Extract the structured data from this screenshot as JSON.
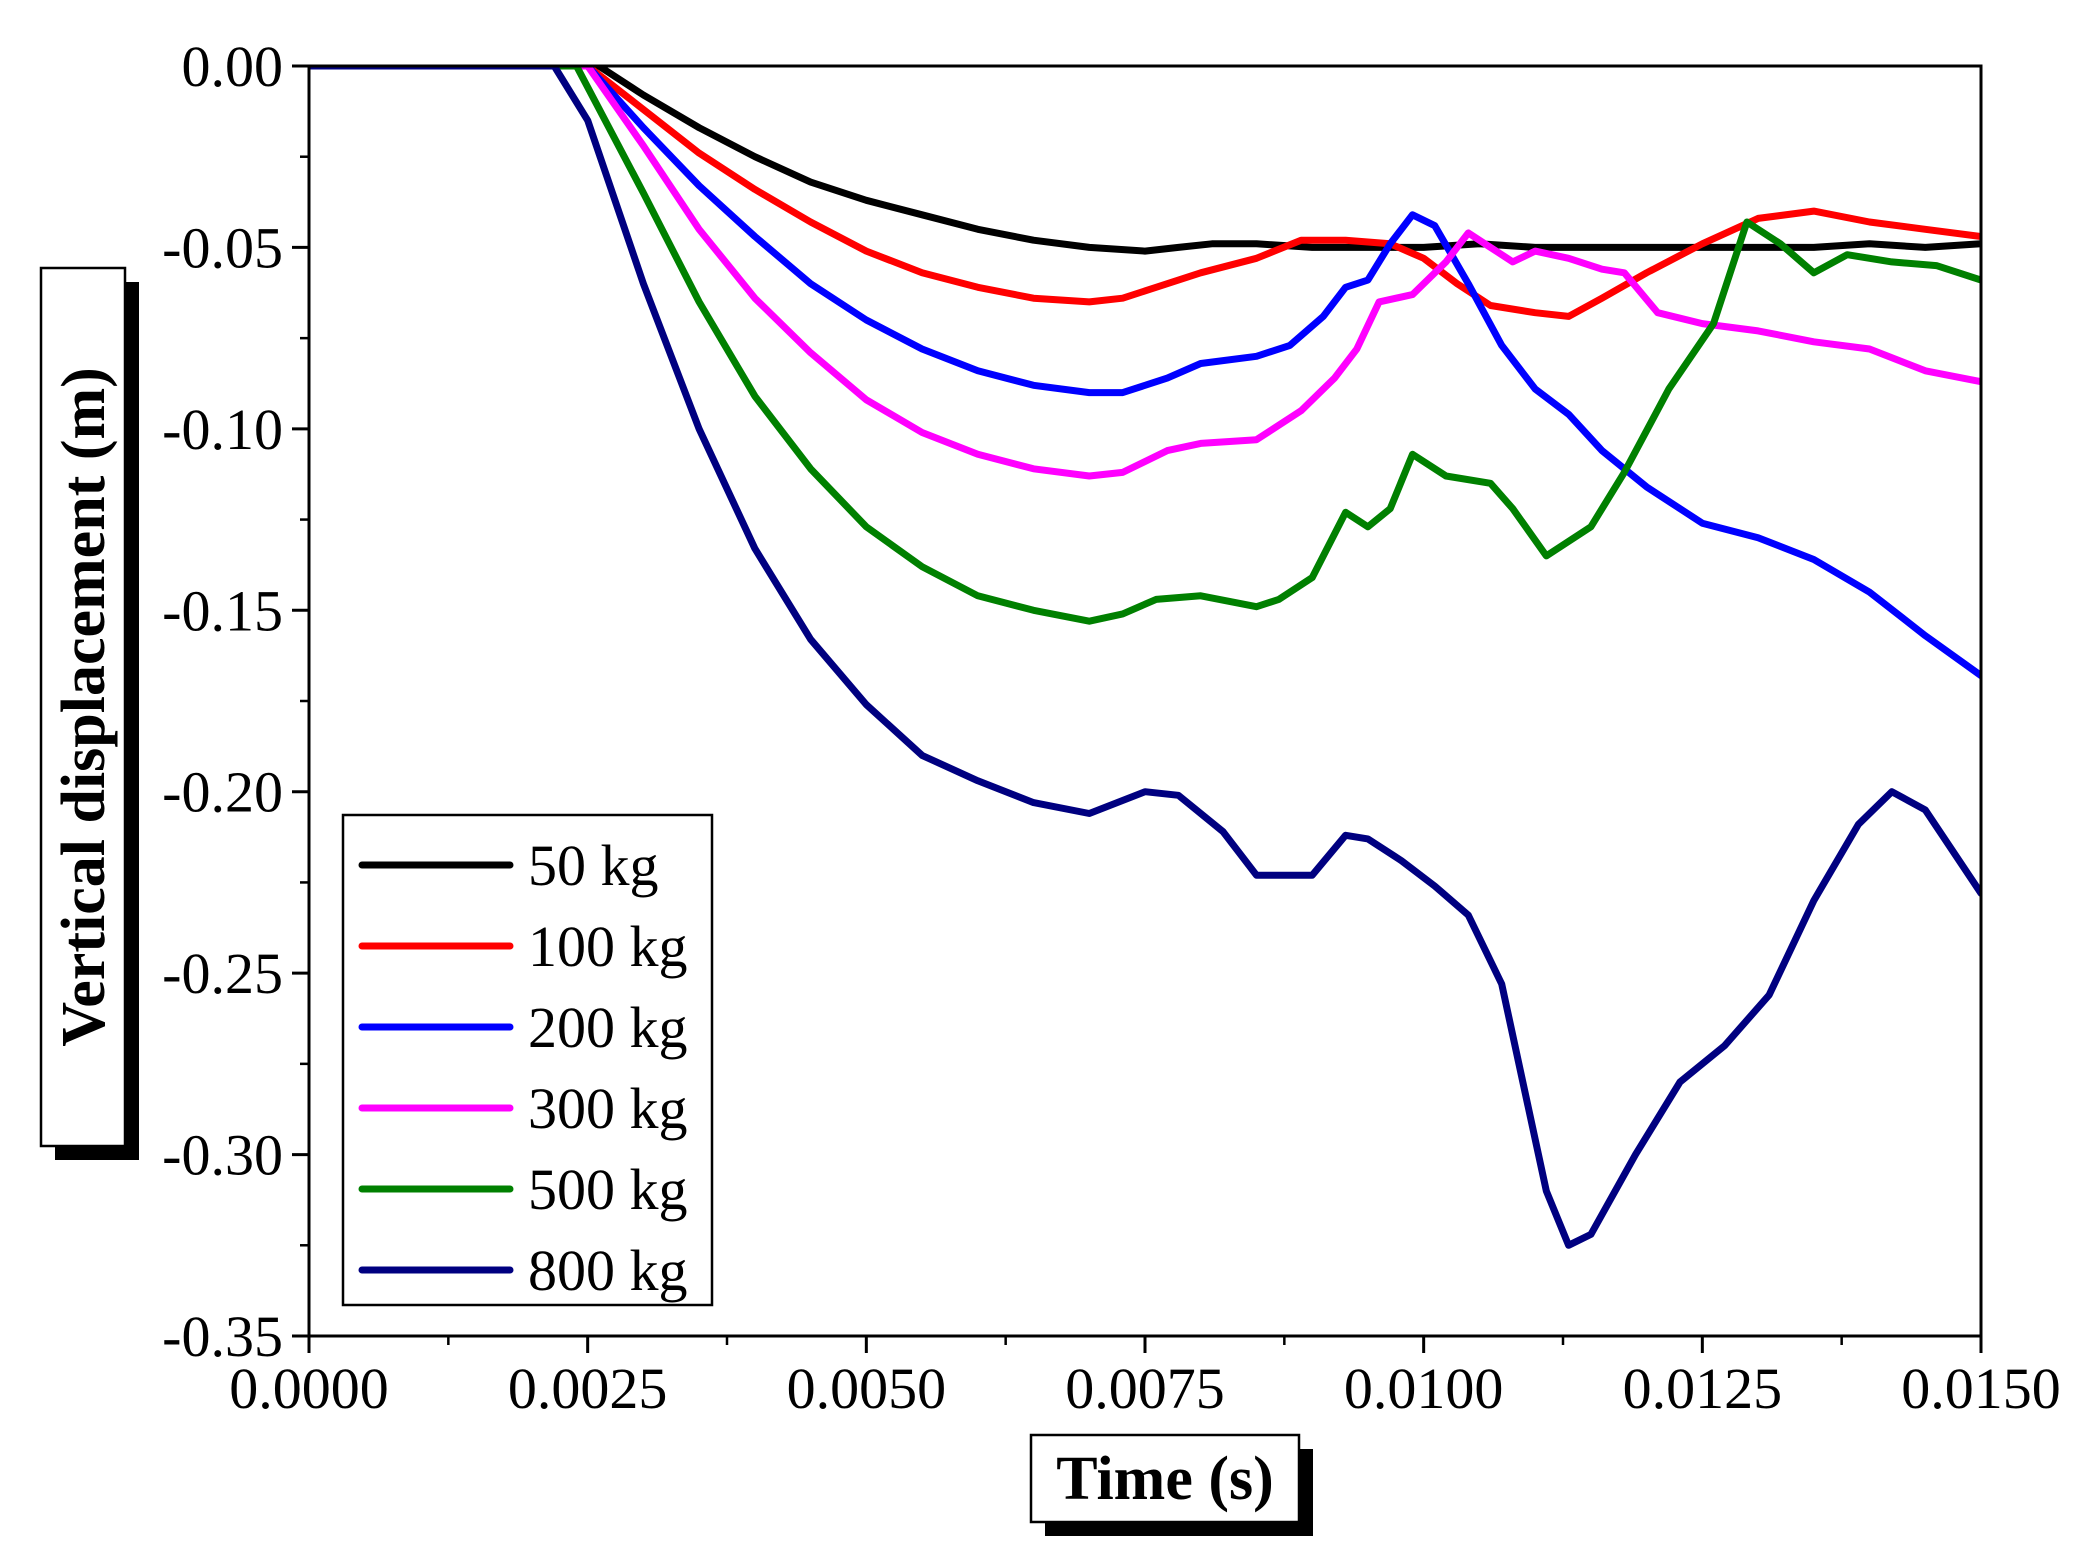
{
  "chart_data": {
    "type": "line",
    "title": "",
    "xlabel": "Time (s)",
    "ylabel": "Vertical displacement (m)",
    "xlim": [
      0.0,
      0.015
    ],
    "ylim": [
      -0.35,
      0.0
    ],
    "x_ticks": [
      0.0,
      0.0025,
      0.005,
      0.0075,
      0.01,
      0.0125,
      0.015
    ],
    "x_tick_labels": [
      "0.0000",
      "0.0025",
      "0.0050",
      "0.0075",
      "0.0100",
      "0.0125",
      "0.0150"
    ],
    "y_ticks": [
      0.0,
      -0.05,
      -0.1,
      -0.15,
      -0.2,
      -0.25,
      -0.3,
      -0.35
    ],
    "y_tick_labels": [
      "0.00",
      "-0.05",
      "-0.10",
      "-0.15",
      "-0.20",
      "-0.25",
      "-0.30",
      "-0.35"
    ],
    "x_minor_step": 0.00125,
    "y_minor_step": 0.025,
    "grid": false,
    "legend_position": "bottom-left",
    "series": [
      {
        "name": "50 kg",
        "color": "#000000",
        "points": [
          [
            0,
            0
          ],
          [
            0.0022,
            0
          ],
          [
            0.0026,
            0
          ],
          [
            0.003,
            -0.008
          ],
          [
            0.0035,
            -0.017
          ],
          [
            0.004,
            -0.025
          ],
          [
            0.0045,
            -0.032
          ],
          [
            0.005,
            -0.037
          ],
          [
            0.0055,
            -0.041
          ],
          [
            0.006,
            -0.045
          ],
          [
            0.0065,
            -0.048
          ],
          [
            0.007,
            -0.05
          ],
          [
            0.0075,
            -0.051
          ],
          [
            0.0078,
            -0.05
          ],
          [
            0.0081,
            -0.049
          ],
          [
            0.0085,
            -0.049
          ],
          [
            0.009,
            -0.05
          ],
          [
            0.0095,
            -0.05
          ],
          [
            0.01,
            -0.05
          ],
          [
            0.0105,
            -0.049
          ],
          [
            0.011,
            -0.05
          ],
          [
            0.0115,
            -0.05
          ],
          [
            0.012,
            -0.05
          ],
          [
            0.0125,
            -0.05
          ],
          [
            0.013,
            -0.05
          ],
          [
            0.0135,
            -0.05
          ],
          [
            0.014,
            -0.049
          ],
          [
            0.0145,
            -0.05
          ],
          [
            0.015,
            -0.049
          ]
        ]
      },
      {
        "name": "100 kg",
        "color": "#ff0000",
        "points": [
          [
            0,
            0
          ],
          [
            0.0022,
            0
          ],
          [
            0.0025,
            0
          ],
          [
            0.003,
            -0.012
          ],
          [
            0.0035,
            -0.024
          ],
          [
            0.004,
            -0.034
          ],
          [
            0.0045,
            -0.043
          ],
          [
            0.005,
            -0.051
          ],
          [
            0.0055,
            -0.057
          ],
          [
            0.006,
            -0.061
          ],
          [
            0.0065,
            -0.064
          ],
          [
            0.007,
            -0.065
          ],
          [
            0.0073,
            -0.064
          ],
          [
            0.0076,
            -0.061
          ],
          [
            0.008,
            -0.057
          ],
          [
            0.0085,
            -0.053
          ],
          [
            0.0089,
            -0.048
          ],
          [
            0.0093,
            -0.048
          ],
          [
            0.0097,
            -0.049
          ],
          [
            0.01,
            -0.053
          ],
          [
            0.0103,
            -0.06
          ],
          [
            0.0106,
            -0.066
          ],
          [
            0.011,
            -0.068
          ],
          [
            0.0113,
            -0.069
          ],
          [
            0.0116,
            -0.064
          ],
          [
            0.012,
            -0.057
          ],
          [
            0.0125,
            -0.049
          ],
          [
            0.013,
            -0.042
          ],
          [
            0.0135,
            -0.04
          ],
          [
            0.014,
            -0.043
          ],
          [
            0.0145,
            -0.045
          ],
          [
            0.015,
            -0.047
          ]
        ]
      },
      {
        "name": "200 kg",
        "color": "#0000ff",
        "points": [
          [
            0,
            0
          ],
          [
            0.0022,
            0
          ],
          [
            0.0025,
            0
          ],
          [
            0.003,
            -0.017
          ],
          [
            0.0035,
            -0.033
          ],
          [
            0.004,
            -0.047
          ],
          [
            0.0045,
            -0.06
          ],
          [
            0.005,
            -0.07
          ],
          [
            0.0055,
            -0.078
          ],
          [
            0.006,
            -0.084
          ],
          [
            0.0065,
            -0.088
          ],
          [
            0.007,
            -0.09
          ],
          [
            0.0073,
            -0.09
          ],
          [
            0.0077,
            -0.086
          ],
          [
            0.008,
            -0.082
          ],
          [
            0.0085,
            -0.08
          ],
          [
            0.0088,
            -0.077
          ],
          [
            0.0091,
            -0.069
          ],
          [
            0.0093,
            -0.061
          ],
          [
            0.0095,
            -0.059
          ],
          [
            0.0097,
            -0.049
          ],
          [
            0.0099,
            -0.041
          ],
          [
            0.0101,
            -0.044
          ],
          [
            0.0104,
            -0.06
          ],
          [
            0.0107,
            -0.077
          ],
          [
            0.011,
            -0.089
          ],
          [
            0.0113,
            -0.096
          ],
          [
            0.0116,
            -0.106
          ],
          [
            0.012,
            -0.116
          ],
          [
            0.0125,
            -0.126
          ],
          [
            0.013,
            -0.13
          ],
          [
            0.0135,
            -0.136
          ],
          [
            0.014,
            -0.145
          ],
          [
            0.0145,
            -0.157
          ],
          [
            0.015,
            -0.168
          ]
        ]
      },
      {
        "name": "300 kg",
        "color": "#ff00ff",
        "points": [
          [
            0,
            0
          ],
          [
            0.0022,
            0
          ],
          [
            0.0025,
            0
          ],
          [
            0.003,
            -0.022
          ],
          [
            0.0035,
            -0.045
          ],
          [
            0.004,
            -0.064
          ],
          [
            0.0045,
            -0.079
          ],
          [
            0.005,
            -0.092
          ],
          [
            0.0055,
            -0.101
          ],
          [
            0.006,
            -0.107
          ],
          [
            0.0065,
            -0.111
          ],
          [
            0.007,
            -0.113
          ],
          [
            0.0073,
            -0.112
          ],
          [
            0.0077,
            -0.106
          ],
          [
            0.008,
            -0.104
          ],
          [
            0.0085,
            -0.103
          ],
          [
            0.0089,
            -0.095
          ],
          [
            0.0092,
            -0.086
          ],
          [
            0.0094,
            -0.078
          ],
          [
            0.0096,
            -0.065
          ],
          [
            0.0099,
            -0.063
          ],
          [
            0.0102,
            -0.054
          ],
          [
            0.0104,
            -0.046
          ],
          [
            0.0106,
            -0.05
          ],
          [
            0.0108,
            -0.054
          ],
          [
            0.011,
            -0.051
          ],
          [
            0.0113,
            -0.053
          ],
          [
            0.0116,
            -0.056
          ],
          [
            0.0118,
            -0.057
          ],
          [
            0.0121,
            -0.068
          ],
          [
            0.0125,
            -0.071
          ],
          [
            0.013,
            -0.073
          ],
          [
            0.0135,
            -0.076
          ],
          [
            0.014,
            -0.078
          ],
          [
            0.0145,
            -0.084
          ],
          [
            0.015,
            -0.087
          ]
        ]
      },
      {
        "name": "500 kg",
        "color": "#008000",
        "points": [
          [
            0,
            0
          ],
          [
            0.0022,
            0
          ],
          [
            0.0024,
            0
          ],
          [
            0.003,
            -0.035
          ],
          [
            0.0035,
            -0.065
          ],
          [
            0.004,
            -0.091
          ],
          [
            0.0045,
            -0.111
          ],
          [
            0.005,
            -0.127
          ],
          [
            0.0055,
            -0.138
          ],
          [
            0.006,
            -0.146
          ],
          [
            0.0065,
            -0.15
          ],
          [
            0.007,
            -0.153
          ],
          [
            0.0073,
            -0.151
          ],
          [
            0.0076,
            -0.147
          ],
          [
            0.008,
            -0.146
          ],
          [
            0.0085,
            -0.149
          ],
          [
            0.0087,
            -0.147
          ],
          [
            0.009,
            -0.141
          ],
          [
            0.0093,
            -0.123
          ],
          [
            0.0095,
            -0.127
          ],
          [
            0.0097,
            -0.122
          ],
          [
            0.0099,
            -0.107
          ],
          [
            0.0102,
            -0.113
          ],
          [
            0.0106,
            -0.115
          ],
          [
            0.0108,
            -0.122
          ],
          [
            0.0111,
            -0.135
          ],
          [
            0.0115,
            -0.127
          ],
          [
            0.0118,
            -0.112
          ],
          [
            0.0122,
            -0.089
          ],
          [
            0.0126,
            -0.071
          ],
          [
            0.0129,
            -0.043
          ],
          [
            0.0132,
            -0.049
          ],
          [
            0.0135,
            -0.057
          ],
          [
            0.0138,
            -0.052
          ],
          [
            0.0142,
            -0.054
          ],
          [
            0.0146,
            -0.055
          ],
          [
            0.015,
            -0.059
          ]
        ]
      },
      {
        "name": "800 kg",
        "color": "#000080",
        "points": [
          [
            0,
            0
          ],
          [
            0.0022,
            0
          ],
          [
            0.0025,
            -0.015
          ],
          [
            0.003,
            -0.06
          ],
          [
            0.0035,
            -0.1
          ],
          [
            0.004,
            -0.133
          ],
          [
            0.0045,
            -0.158
          ],
          [
            0.005,
            -0.176
          ],
          [
            0.0055,
            -0.19
          ],
          [
            0.006,
            -0.197
          ],
          [
            0.0065,
            -0.203
          ],
          [
            0.007,
            -0.206
          ],
          [
            0.0075,
            -0.2
          ],
          [
            0.0078,
            -0.201
          ],
          [
            0.0082,
            -0.211
          ],
          [
            0.0085,
            -0.223
          ],
          [
            0.009,
            -0.223
          ],
          [
            0.0093,
            -0.212
          ],
          [
            0.0095,
            -0.213
          ],
          [
            0.0098,
            -0.219
          ],
          [
            0.0101,
            -0.226
          ],
          [
            0.0104,
            -0.234
          ],
          [
            0.0107,
            -0.253
          ],
          [
            0.0111,
            -0.31
          ],
          [
            0.0113,
            -0.325
          ],
          [
            0.0115,
            -0.322
          ],
          [
            0.0119,
            -0.3
          ],
          [
            0.0123,
            -0.28
          ],
          [
            0.0127,
            -0.27
          ],
          [
            0.0131,
            -0.256
          ],
          [
            0.0135,
            -0.23
          ],
          [
            0.0139,
            -0.209
          ],
          [
            0.0142,
            -0.2
          ],
          [
            0.0145,
            -0.205
          ],
          [
            0.015,
            -0.228
          ]
        ]
      }
    ]
  }
}
